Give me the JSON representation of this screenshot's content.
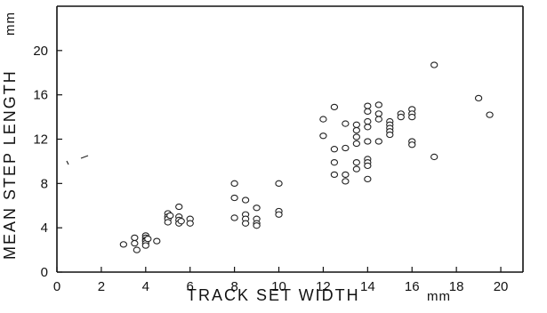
{
  "chart_data": {
    "type": "scatter",
    "xlabel": "TRACK   SET   WIDTH",
    "xunit": "mm",
    "ylabel": "MEAN   STEP   LENGTH",
    "yunit": "mm",
    "xlim": [
      0,
      21
    ],
    "ylim": [
      0,
      24
    ],
    "x_ticks": [
      0,
      2,
      4,
      6,
      8,
      10,
      12,
      14,
      16,
      18,
      20
    ],
    "y_ticks": [
      0,
      4,
      8,
      12,
      16,
      20
    ],
    "x_tick_labels": [
      "0",
      "2",
      "4",
      "6",
      "8",
      "10",
      "12",
      "14",
      "16",
      "18",
      "20"
    ],
    "y_tick_labels": [
      "0",
      "4",
      "8",
      "12",
      "16",
      "20"
    ],
    "grid": false,
    "legend": "none",
    "series": [
      {
        "points": [
          [
            3.0,
            2.5
          ],
          [
            3.5,
            3.1
          ],
          [
            3.5,
            2.6
          ],
          [
            3.6,
            2.0
          ],
          [
            4.0,
            3.3
          ],
          [
            4.0,
            3.1
          ],
          [
            4.0,
            2.9
          ],
          [
            4.0,
            2.8
          ],
          [
            4.0,
            2.6
          ],
          [
            4.0,
            2.4
          ],
          [
            4.1,
            3.0
          ],
          [
            4.5,
            2.8
          ],
          [
            5.0,
            5.3
          ],
          [
            5.0,
            5.0
          ],
          [
            5.0,
            4.8
          ],
          [
            5.0,
            4.5
          ],
          [
            5.1,
            5.1
          ],
          [
            5.5,
            5.9
          ],
          [
            5.5,
            5.0
          ],
          [
            5.5,
            4.7
          ],
          [
            5.5,
            4.4
          ],
          [
            5.6,
            4.6
          ],
          [
            6.0,
            4.8
          ],
          [
            6.0,
            4.4
          ],
          [
            8.0,
            8.0
          ],
          [
            8.0,
            6.7
          ],
          [
            8.0,
            4.9
          ],
          [
            8.5,
            6.5
          ],
          [
            8.5,
            5.2
          ],
          [
            8.5,
            4.8
          ],
          [
            8.5,
            4.4
          ],
          [
            9.0,
            5.8
          ],
          [
            9.0,
            4.8
          ],
          [
            9.0,
            4.4
          ],
          [
            9.0,
            4.2
          ],
          [
            10.0,
            8.0
          ],
          [
            10.0,
            5.5
          ],
          [
            10.0,
            5.2
          ],
          [
            12.0,
            13.8
          ],
          [
            12.0,
            12.3
          ],
          [
            12.5,
            14.9
          ],
          [
            12.5,
            11.1
          ],
          [
            12.5,
            9.9
          ],
          [
            12.5,
            8.8
          ],
          [
            13.0,
            13.4
          ],
          [
            13.0,
            11.2
          ],
          [
            13.0,
            8.8
          ],
          [
            13.0,
            8.2
          ],
          [
            13.5,
            13.3
          ],
          [
            13.5,
            12.8
          ],
          [
            13.5,
            12.2
          ],
          [
            13.5,
            11.6
          ],
          [
            13.5,
            9.9
          ],
          [
            13.5,
            9.3
          ],
          [
            14.0,
            15.0
          ],
          [
            14.0,
            14.5
          ],
          [
            14.0,
            13.6
          ],
          [
            14.0,
            13.1
          ],
          [
            14.0,
            11.8
          ],
          [
            14.0,
            10.2
          ],
          [
            14.0,
            9.9
          ],
          [
            14.0,
            9.6
          ],
          [
            14.0,
            8.4
          ],
          [
            14.5,
            15.1
          ],
          [
            14.5,
            14.3
          ],
          [
            14.5,
            13.8
          ],
          [
            14.5,
            11.8
          ],
          [
            15.0,
            13.6
          ],
          [
            15.0,
            13.3
          ],
          [
            15.0,
            13.0
          ],
          [
            15.0,
            12.7
          ],
          [
            15.0,
            12.4
          ],
          [
            15.5,
            14.3
          ],
          [
            15.5,
            14.0
          ],
          [
            16.0,
            14.7
          ],
          [
            16.0,
            14.3
          ],
          [
            16.0,
            14.0
          ],
          [
            16.0,
            11.8
          ],
          [
            16.0,
            11.5
          ],
          [
            17.0,
            18.7
          ],
          [
            17.0,
            10.4
          ],
          [
            19.0,
            15.7
          ],
          [
            19.5,
            14.2
          ]
        ]
      }
    ]
  }
}
